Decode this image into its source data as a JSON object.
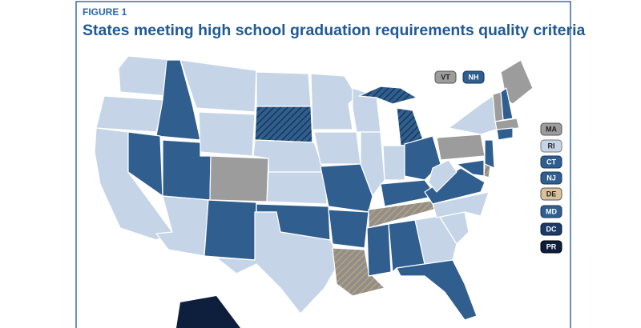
{
  "figure_label": "FIGURE 1",
  "title": "States meeting high school graduation requirements quality criteria",
  "labels": [
    "VT",
    "NH",
    "MA",
    "RI",
    "CT",
    "NJ",
    "DE",
    "MD",
    "DC",
    "PR"
  ]
}
